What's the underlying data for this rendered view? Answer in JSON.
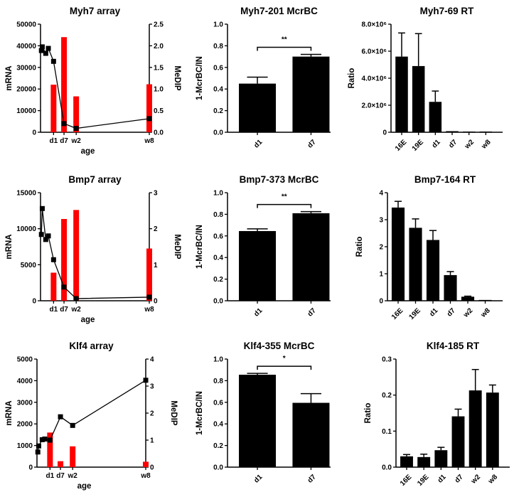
{
  "chart_data": [
    {
      "type": "bar+line",
      "title": "Myh7 array",
      "xlabel": "age",
      "ylabel": "mRNA",
      "y2label": "MeDIP",
      "ylim": [
        0,
        50000
      ],
      "yticks": [
        "0",
        "10000",
        "20000",
        "30000",
        "40000",
        "50000"
      ],
      "y2lim": [
        0,
        2.5
      ],
      "y2ticks": [
        "0.0",
        "0.5",
        "1.0",
        "1.5",
        "2.0",
        "2.5"
      ],
      "xtick_labels": [
        "d1",
        "d7",
        "w2",
        "w8"
      ],
      "xtick_days": [
        1,
        7,
        14,
        56
      ],
      "line": {
        "axis": "left",
        "x_days": [
          -6,
          -5.5,
          -3.5,
          -2,
          1,
          7,
          14,
          56
        ],
        "values": [
          37800,
          39500,
          36500,
          38800,
          32800,
          4000,
          1800,
          6300
        ],
        "color": "#000000"
      },
      "bars": {
        "axis": "right",
        "x_days": [
          1,
          7,
          14,
          56
        ],
        "values": [
          1.1,
          2.2,
          0.83,
          1.11
        ],
        "color": "#ff0000"
      }
    },
    {
      "type": "bar",
      "title": "Myh7-201 McrBC",
      "ylabel": "1-McrBC/IN",
      "ylim": [
        0,
        1.0
      ],
      "yticks": [
        "0.0",
        "0.2",
        "0.4",
        "0.6",
        "0.8",
        "1.0"
      ],
      "categories": [
        "d1",
        "d7"
      ],
      "values": [
        0.45,
        0.7
      ],
      "error_upper": [
        0.51,
        0.72
      ],
      "significance": "**",
      "color": "#000000"
    },
    {
      "type": "bar",
      "title": "Myh7-69 RT",
      "ylabel": "Ratio",
      "ylim": [
        0,
        8000000
      ],
      "yticks": [
        "0",
        "2.0×10⁶",
        "4.0×10⁶",
        "6.0×10⁶",
        "8.0×10⁶"
      ],
      "categories": [
        "16E",
        "19E",
        "d1",
        "d7",
        "w2",
        "w8"
      ],
      "values": [
        5600000,
        4900000,
        2250000,
        80000,
        0,
        0
      ],
      "error_upper": [
        7350000,
        7300000,
        3050000,
        90000,
        0,
        0
      ],
      "color": "#000000"
    },
    {
      "type": "bar+line",
      "title": "Bmp7 array",
      "xlabel": "age",
      "ylabel": "mRNA",
      "y2label": "MeDIP",
      "ylim": [
        0,
        15000
      ],
      "yticks": [
        "0",
        "5000",
        "10000",
        "15000"
      ],
      "y2lim": [
        0,
        3
      ],
      "y2ticks": [
        "0",
        "1",
        "2",
        "3"
      ],
      "xtick_labels": [
        "d1",
        "d7",
        "w2",
        "w8"
      ],
      "xtick_days": [
        1,
        7,
        14,
        56
      ],
      "line": {
        "axis": "left",
        "x_days": [
          -6,
          -5.5,
          -3.5,
          -2,
          1,
          7,
          14,
          56
        ],
        "values": [
          9200,
          12800,
          8500,
          9000,
          5700,
          1900,
          300,
          500
        ],
        "color": "#000000"
      },
      "bars": {
        "axis": "right",
        "x_days": [
          1,
          7,
          14,
          56
        ],
        "values": [
          0.78,
          2.27,
          2.52,
          1.45
        ],
        "color": "#ff0000"
      }
    },
    {
      "type": "bar",
      "title": "Bmp7-373 McrBC",
      "ylabel": "1-McrBC/IN",
      "ylim": [
        0,
        1.0
      ],
      "yticks": [
        "0.0",
        "0.2",
        "0.4",
        "0.6",
        "0.8",
        "1.0"
      ],
      "categories": [
        "d1",
        "d7"
      ],
      "values": [
        0.645,
        0.81
      ],
      "error_upper": [
        0.665,
        0.825
      ],
      "significance": "**",
      "color": "#000000"
    },
    {
      "type": "bar",
      "title": "Bmp7-164 RT",
      "ylabel": "Ratio",
      "ylim": [
        0,
        4
      ],
      "yticks": [
        "0",
        "1",
        "2",
        "3",
        "4"
      ],
      "categories": [
        "16E",
        "19E",
        "d1",
        "d7",
        "w2",
        "w8"
      ],
      "values": [
        3.45,
        2.7,
        2.25,
        0.95,
        0.15,
        0.03
      ],
      "error_upper": [
        3.68,
        3.03,
        2.6,
        1.08,
        0.17,
        0.04
      ],
      "color": "#000000"
    },
    {
      "type": "bar+line",
      "title": "Klf4 array",
      "xlabel": "age",
      "ylabel": "mRNA",
      "y2label": "MeDIP",
      "ylim": [
        0,
        5000
      ],
      "yticks": [
        "0",
        "1000",
        "2000",
        "3000",
        "4000",
        "5000"
      ],
      "y2lim": [
        0,
        4
      ],
      "y2ticks": [
        "0",
        "1",
        "2",
        "3",
        "4"
      ],
      "xtick_labels": [
        "d1",
        "d7",
        "w2",
        "w8"
      ],
      "xtick_days": [
        1,
        7,
        14,
        56
      ],
      "line": {
        "axis": "left",
        "x_days": [
          -6,
          -5.5,
          -3.5,
          -2,
          1,
          7,
          14,
          56
        ],
        "values": [
          700,
          980,
          1270,
          1300,
          1250,
          2330,
          1930,
          4020
        ],
        "color": "#000000"
      },
      "bars": {
        "axis": "right",
        "x_days": [
          1,
          7,
          14,
          56
        ],
        "values": [
          1.28,
          0.22,
          0.77,
          0.2
        ],
        "color": "#ff0000"
      }
    },
    {
      "type": "bar",
      "title": "Klf4-355 McrBC",
      "ylabel": "1-McrBC/IN",
      "ylim": [
        0,
        1.0
      ],
      "yticks": [
        "0.0",
        "0.2",
        "0.4",
        "0.6",
        "0.8",
        "1.0"
      ],
      "categories": [
        "d1",
        "d7"
      ],
      "values": [
        0.855,
        0.595
      ],
      "error_upper": [
        0.868,
        0.68
      ],
      "significance": "*",
      "color": "#000000"
    },
    {
      "type": "bar",
      "title": "Klf4-185 RT",
      "ylabel": "Ratio",
      "ylim": [
        0,
        0.3
      ],
      "yticks": [
        "0.0",
        "0.1",
        "0.2",
        "0.3"
      ],
      "categories": [
        "16E",
        "19E",
        "d1",
        "d7",
        "w2",
        "w8"
      ],
      "values": [
        0.03,
        0.028,
        0.047,
        0.141,
        0.213,
        0.207
      ],
      "error_upper": [
        0.035,
        0.036,
        0.055,
        0.161,
        0.271,
        0.228
      ],
      "color": "#000000"
    }
  ]
}
